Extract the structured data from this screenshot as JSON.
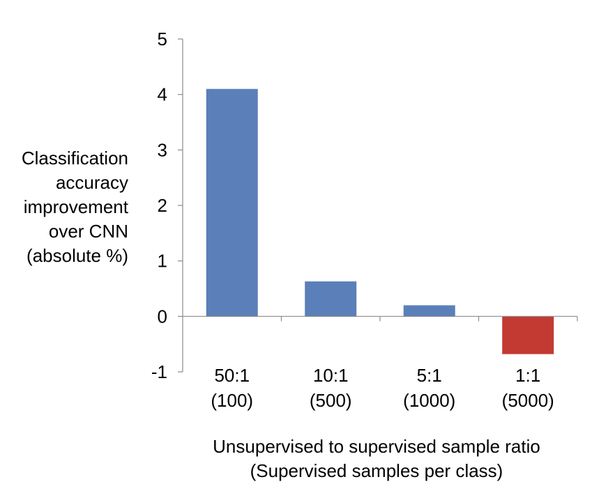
{
  "chart_data": {
    "type": "bar",
    "categories": [
      [
        "50:1",
        "(100)"
      ],
      [
        "10:1",
        "(500)"
      ],
      [
        "5:1",
        "(1000)"
      ],
      [
        "1:1",
        "(5000)"
      ]
    ],
    "values": [
      4.1,
      0.63,
      0.2,
      -0.68
    ],
    "bar_colors": [
      "#5b7fb8",
      "#5b7fb8",
      "#5b7fb8",
      "#c33a32"
    ],
    "ylabel_lines": [
      "Classification",
      "accuracy",
      "improvement",
      "over CNN",
      "(absolute %)"
    ],
    "xlabel_lines": [
      "Unsupervised to supervised sample ratio",
      "(Supervised samples per class)"
    ],
    "ylim": [
      -1,
      5
    ],
    "yticks": [
      -1,
      0,
      1,
      2,
      3,
      4,
      5
    ],
    "grid": false,
    "legend": "none"
  }
}
